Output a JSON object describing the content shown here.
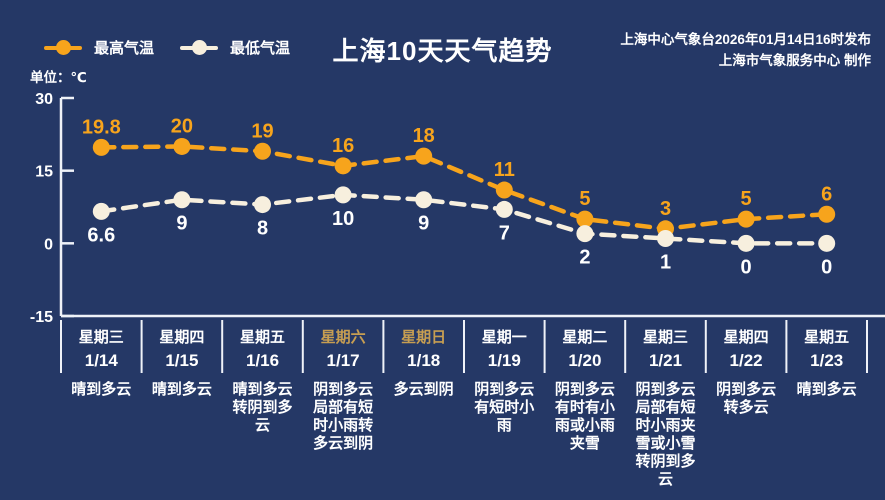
{
  "title": "上海10天天气趋势",
  "source": {
    "line1": "上海中心气象台2026年01月14日16时发布",
    "line2": "上海市气象服务中心  制作"
  },
  "unit_label": "单位：℃",
  "colors": {
    "background": "#253866",
    "max_orange": "#F7A41C",
    "min_cream": "#F7EFDE",
    "axis_white": "#EFF2F8",
    "text_white": "#FFFFFF",
    "weekend_gold": "#C79E52"
  },
  "legend": {
    "items": [
      {
        "label": "最高气温",
        "color": "#F7A41C"
      },
      {
        "label": "最低气温",
        "color": "#F7EFDE"
      }
    ]
  },
  "chart_data": {
    "type": "line",
    "title": "上海10天天气趋势",
    "x": [
      "1/14",
      "1/15",
      "1/16",
      "1/17",
      "1/18",
      "1/19",
      "1/20",
      "1/21",
      "1/22",
      "1/23"
    ],
    "series": [
      {
        "name": "最高气温",
        "color": "#F7A41C",
        "style": "dashed",
        "values": [
          19.8,
          20,
          19,
          16,
          18,
          11,
          5,
          3,
          5,
          6
        ]
      },
      {
        "name": "最低气温",
        "color": "#F7EFDE",
        "style": "dashed",
        "values": [
          6.6,
          9,
          8,
          10,
          9,
          7,
          2,
          1,
          0,
          0
        ]
      }
    ],
    "ylabel": "℃",
    "yticks": [
      30,
      15,
      0,
      -15
    ],
    "ylim": [
      -15,
      30
    ],
    "grid": false,
    "legend_position": "top-left"
  },
  "days": [
    {
      "day": "星期三",
      "date": "1/14",
      "weather": "晴到多云",
      "weekend": false
    },
    {
      "day": "星期四",
      "date": "1/15",
      "weather": "晴到多云",
      "weekend": false
    },
    {
      "day": "星期五",
      "date": "1/16",
      "weather": "晴到多云转阴到多云",
      "weekend": false
    },
    {
      "day": "星期六",
      "date": "1/17",
      "weather": "阴到多云局部有短时小雨转多云到阴",
      "weekend": true
    },
    {
      "day": "星期日",
      "date": "1/18",
      "weather": "多云到阴",
      "weekend": true
    },
    {
      "day": "星期一",
      "date": "1/19",
      "weather": "阴到多云有短时小雨",
      "weekend": false
    },
    {
      "day": "星期二",
      "date": "1/20",
      "weather": "阴到多云有时有小雨或小雨夹雪",
      "weekend": false
    },
    {
      "day": "星期三",
      "date": "1/21",
      "weather": "阴到多云局部有短时小雨夹雪或小雪转阴到多云",
      "weekend": false
    },
    {
      "day": "星期四",
      "date": "1/22",
      "weather": "阴到多云转多云",
      "weekend": false
    },
    {
      "day": "星期五",
      "date": "1/23",
      "weather": "晴到多云",
      "weekend": false
    }
  ]
}
